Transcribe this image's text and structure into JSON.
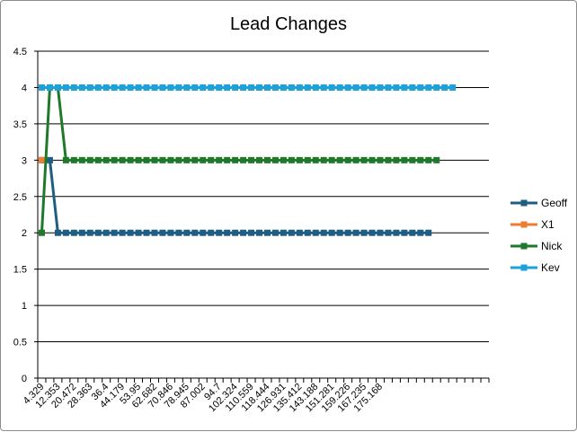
{
  "chart_data": {
    "type": "line",
    "title": "Lead Changes",
    "xlabel": "",
    "ylabel": "",
    "ylim": [
      0,
      4.5
    ],
    "ytick_step": 0.5,
    "yticks": [
      "0",
      "0.5",
      "1",
      "1.5",
      "2",
      "2.5",
      "3",
      "3.5",
      "4",
      "4.5"
    ],
    "grid": true,
    "legend_position": "right",
    "x_tick_labels": [
      "4.329",
      "12.353",
      "20.472",
      "28.363",
      "36.4",
      "44.179",
      "53.95",
      "62.682",
      "70.846",
      "78.945",
      "87.002",
      "94.7",
      "102.324",
      "110.559",
      "118.444",
      "126.931",
      "135.412",
      "143.188",
      "151.281",
      "159.226",
      "167.235",
      "175.168"
    ],
    "series": [
      {
        "name": "Geoff",
        "color": "#1f5d82",
        "values": [
          3,
          3,
          2,
          2,
          2,
          2,
          2,
          2,
          2,
          2,
          2,
          2,
          2,
          2,
          2,
          2,
          2,
          2,
          2,
          2,
          2,
          2,
          2,
          2,
          2,
          2,
          2,
          2,
          2,
          2,
          2,
          2,
          2,
          2,
          2,
          2,
          2,
          2,
          2,
          2,
          2,
          2,
          2,
          2,
          2,
          2,
          2,
          2,
          2
        ]
      },
      {
        "name": "X1",
        "color": "#ed7d31",
        "values": [
          3
        ]
      },
      {
        "name": "Nick",
        "color": "#1e7a2a",
        "values": [
          2,
          4,
          4,
          3,
          3,
          3,
          3,
          3,
          3,
          3,
          3,
          3,
          3,
          3,
          3,
          3,
          3,
          3,
          3,
          3,
          3,
          3,
          3,
          3,
          3,
          3,
          3,
          3,
          3,
          3,
          3,
          3,
          3,
          3,
          3,
          3,
          3,
          3,
          3,
          3,
          3,
          3,
          3,
          3,
          3,
          3,
          3,
          3,
          3,
          3
        ]
      },
      {
        "name": "Kev",
        "color": "#1ea0d8",
        "values": [
          4,
          4,
          4,
          4,
          4,
          4,
          4,
          4,
          4,
          4,
          4,
          4,
          4,
          4,
          4,
          4,
          4,
          4,
          4,
          4,
          4,
          4,
          4,
          4,
          4,
          4,
          4,
          4,
          4,
          4,
          4,
          4,
          4,
          4,
          4,
          4,
          4,
          4,
          4,
          4,
          4,
          4,
          4,
          4,
          4,
          4,
          4,
          4,
          4,
          4,
          4,
          4
        ]
      }
    ]
  }
}
